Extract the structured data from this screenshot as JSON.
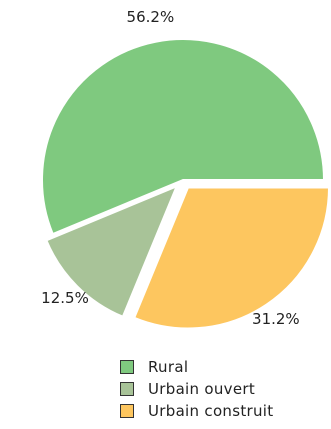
{
  "chart_data": {
    "type": "pie",
    "slices": [
      {
        "label": "Rural",
        "value": 56.2,
        "display": "56.2%",
        "color": "#7fc97f",
        "exploded": false
      },
      {
        "label": "Urbain construit",
        "value": 31.2,
        "display": "31.2%",
        "color": "#fdc65f",
        "exploded": true
      },
      {
        "label": "Urbain ouvert",
        "value": 12.5,
        "display": "12.5%",
        "color": "#a8c398",
        "exploded": true
      }
    ],
    "legend": {
      "placement": "bottom",
      "items": [
        {
          "label": "Rural",
          "color": "#7fc97f"
        },
        {
          "label": "Urbain ouvert",
          "color": "#a8c398"
        },
        {
          "label": "Urbain construit",
          "color": "#fdc65f"
        }
      ]
    }
  }
}
